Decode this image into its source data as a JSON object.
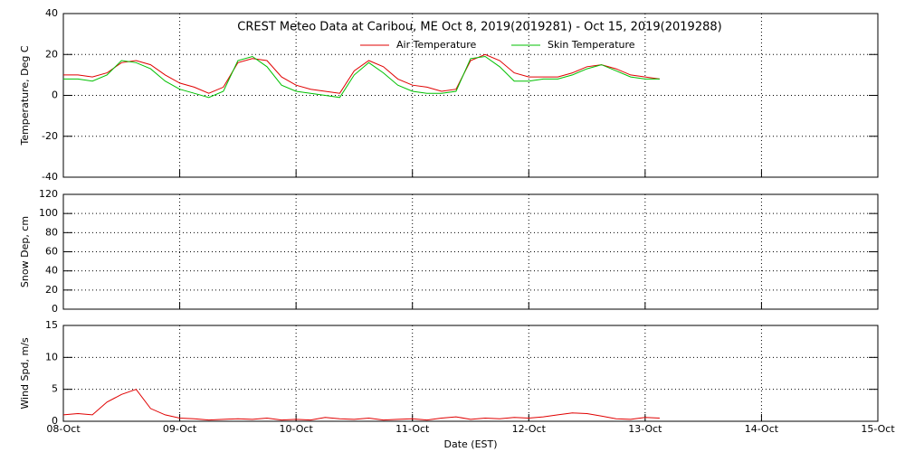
{
  "chart_data": [
    {
      "type": "line",
      "title": "CREST Meteo Data at Caribou, ME   Oct  8, 2019(2019281) - Oct 15, 2019(2019288)",
      "y_label": "Temperature, Deg C",
      "x": [
        0,
        0.125,
        0.25,
        0.375,
        0.5,
        0.625,
        0.75,
        0.875,
        1,
        1.125,
        1.25,
        1.375,
        1.5,
        1.625,
        1.75,
        1.875,
        2,
        2.125,
        2.25,
        2.375,
        2.5,
        2.625,
        2.75,
        2.875,
        3,
        3.125,
        3.25,
        3.375,
        3.5,
        3.625,
        3.75,
        3.875,
        4,
        4.125,
        4.25,
        4.375,
        4.5,
        4.625,
        4.75,
        4.875,
        5,
        5.125
      ],
      "series": [
        {
          "name": "Air Temperature",
          "color": "#e00000",
          "values": [
            10,
            10,
            9,
            11,
            16,
            17,
            15,
            10,
            6,
            4,
            1,
            4,
            16,
            18,
            17,
            9,
            5,
            3,
            2,
            1,
            12,
            17,
            14,
            8,
            5,
            4,
            2,
            3,
            17,
            20,
            17,
            11,
            9,
            9,
            9,
            11,
            14,
            15,
            13,
            10,
            9,
            8
          ]
        },
        {
          "name": "Skin Temperature",
          "color": "#00c000",
          "values": [
            8,
            8,
            7,
            10,
            17,
            16,
            13,
            7,
            3,
            1,
            -1,
            2,
            17,
            19,
            14,
            5,
            2,
            1,
            0,
            -1,
            10,
            16,
            11,
            5,
            2,
            1,
            1,
            2,
            18,
            19,
            14,
            7,
            7,
            8,
            8,
            10,
            13,
            15,
            12,
            9,
            8,
            8
          ]
        }
      ],
      "xlim": [
        0,
        7
      ],
      "xticks": [
        0,
        1,
        2,
        3,
        4,
        5,
        6,
        7
      ],
      "ylim": [
        -40,
        40
      ],
      "yticks": [
        -40,
        -20,
        0,
        20,
        40
      ],
      "grid": true
    },
    {
      "type": "line",
      "y_label": "Snow Dep, cm",
      "xlim": [
        0,
        7
      ],
      "xticks": [
        0,
        1,
        2,
        3,
        4,
        5,
        6,
        7
      ],
      "ylim": [
        0,
        120
      ],
      "yticks": [
        0,
        20,
        40,
        60,
        80,
        100,
        120
      ],
      "grid": true
    },
    {
      "type": "line",
      "y_label": "Wind Spd, m/s",
      "x_label": "Date (EST)",
      "x": [
        0,
        0.125,
        0.25,
        0.375,
        0.5,
        0.625,
        0.75,
        0.875,
        1,
        1.125,
        1.25,
        1.375,
        1.5,
        1.625,
        1.75,
        1.875,
        2,
        2.125,
        2.25,
        2.375,
        2.5,
        2.625,
        2.75,
        2.875,
        3,
        3.125,
        3.25,
        3.375,
        3.5,
        3.625,
        3.75,
        3.875,
        4,
        4.125,
        4.25,
        4.375,
        4.5,
        4.625,
        4.75,
        4.875,
        5,
        5.125
      ],
      "series": [
        {
          "name": "Wind Speed",
          "color": "#e00000",
          "values": [
            1,
            1.2,
            1,
            3,
            4.2,
            5,
            2,
            1,
            0.5,
            0.4,
            0.2,
            0.3,
            0.4,
            0.3,
            0.5,
            0.2,
            0.3,
            0.2,
            0.6,
            0.4,
            0.3,
            0.5,
            0.2,
            0.3,
            0.4,
            0.2,
            0.5,
            0.7,
            0.3,
            0.5,
            0.4,
            0.6,
            0.5,
            0.7,
            1,
            1.3,
            1.2,
            0.8,
            0.4,
            0.3,
            0.6,
            0.5
          ]
        }
      ],
      "xlim": [
        0,
        7
      ],
      "xticks": [
        {
          "value": 0,
          "label": "08-Oct"
        },
        {
          "value": 1,
          "label": "09-Oct"
        },
        {
          "value": 2,
          "label": "10-Oct"
        },
        {
          "value": 3,
          "label": "11-Oct"
        },
        {
          "value": 4,
          "label": "12-Oct"
        },
        {
          "value": 5,
          "label": "13-Oct"
        },
        {
          "value": 6,
          "label": "14-Oct"
        },
        {
          "value": 7,
          "label": "15-Oct"
        }
      ],
      "ylim": [
        0,
        15
      ],
      "yticks": [
        0,
        5,
        10,
        15
      ],
      "grid": true
    }
  ]
}
